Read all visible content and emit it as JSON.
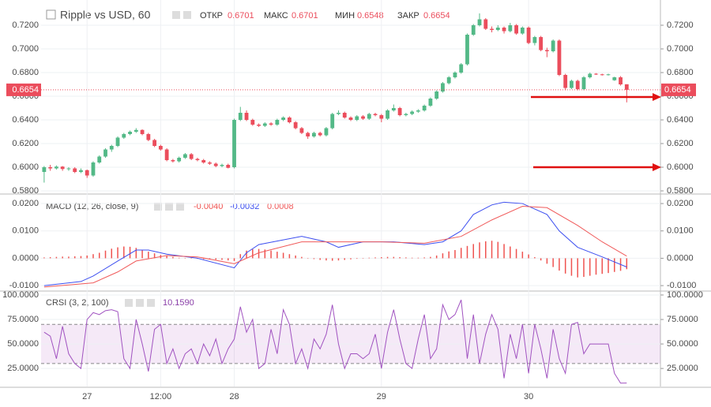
{
  "chart_data": [
    {
      "type": "candlestick",
      "title": "Ripple vs USD, 60",
      "ohlc_labels": [
        "ОТКР",
        "МАКС",
        "МИН",
        "ЗАКР"
      ],
      "up_color": "#53b987",
      "down_color": "#eb4d5c",
      "grid": true,
      "xlim": [
        -0.5,
        100.5
      ],
      "xticks": [
        {
          "value": 7,
          "label": "27"
        },
        {
          "value": 19,
          "label": "12:00"
        },
        {
          "value": 31,
          "label": "28"
        },
        {
          "value": 55,
          "label": "29"
        },
        {
          "value": 79,
          "label": "30"
        }
      ],
      "ylim": [
        0.578,
        0.738
      ],
      "yticks": [
        {
          "value": 0.58,
          "label": "0.5800"
        },
        {
          "value": 0.6,
          "label": "0.6000"
        },
        {
          "value": 0.62,
          "label": "0.6200"
        },
        {
          "value": 0.64,
          "label": "0.6400"
        },
        {
          "value": 0.66,
          "label": "0.6600"
        },
        {
          "value": 0.68,
          "label": "0.6800"
        },
        {
          "value": 0.7,
          "label": "0.7000"
        },
        {
          "value": 0.72,
          "label": "0.7200"
        }
      ],
      "candles": [
        [
          0.596,
          0.601,
          0.587,
          0.6
        ],
        [
          0.6,
          0.602,
          0.597,
          0.599
        ],
        [
          0.599,
          0.6015,
          0.598,
          0.6005
        ],
        [
          0.6005,
          0.601,
          0.597,
          0.5985
        ],
        [
          0.5985,
          0.6,
          0.597,
          0.599
        ],
        [
          0.599,
          0.6,
          0.595,
          0.596
        ],
        [
          0.596,
          0.599,
          0.595,
          0.5975
        ],
        [
          0.5975,
          0.598,
          0.591,
          0.593
        ],
        [
          0.593,
          0.605,
          0.592,
          0.604
        ],
        [
          0.604,
          0.61,
          0.603,
          0.609
        ],
        [
          0.609,
          0.616,
          0.608,
          0.615
        ],
        [
          0.615,
          0.619,
          0.613,
          0.618
        ],
        [
          0.618,
          0.626,
          0.617,
          0.625
        ],
        [
          0.625,
          0.629,
          0.624,
          0.628
        ],
        [
          0.628,
          0.631,
          0.627,
          0.63
        ],
        [
          0.63,
          0.633,
          0.629,
          0.6315
        ],
        [
          0.6315,
          0.632,
          0.627,
          0.628
        ],
        [
          0.628,
          0.629,
          0.622,
          0.623
        ],
        [
          0.623,
          0.624,
          0.617,
          0.618
        ],
        [
          0.618,
          0.619,
          0.614,
          0.615
        ],
        [
          0.615,
          0.616,
          0.605,
          0.606
        ],
        [
          0.606,
          0.607,
          0.604,
          0.605
        ],
        [
          0.605,
          0.609,
          0.604,
          0.608
        ],
        [
          0.608,
          0.612,
          0.607,
          0.611
        ],
        [
          0.611,
          0.612,
          0.606,
          0.607
        ],
        [
          0.607,
          0.608,
          0.605,
          0.606
        ],
        [
          0.606,
          0.607,
          0.603,
          0.604
        ],
        [
          0.604,
          0.605,
          0.602,
          0.603
        ],
        [
          0.603,
          0.604,
          0.6,
          0.601
        ],
        [
          0.601,
          0.603,
          0.6,
          0.602
        ],
        [
          0.602,
          0.603,
          0.599,
          0.5995
        ],
        [
          0.6,
          0.641,
          0.599,
          0.64
        ],
        [
          0.64,
          0.651,
          0.639,
          0.646
        ],
        [
          0.646,
          0.648,
          0.639,
          0.64
        ],
        [
          0.64,
          0.641,
          0.635,
          0.636
        ],
        [
          0.636,
          0.637,
          0.634,
          0.635
        ],
        [
          0.635,
          0.638,
          0.634,
          0.637
        ],
        [
          0.637,
          0.638,
          0.635,
          0.636
        ],
        [
          0.636,
          0.641,
          0.635,
          0.64
        ],
        [
          0.64,
          0.643,
          0.639,
          0.642
        ],
        [
          0.642,
          0.643,
          0.637,
          0.638
        ],
        [
          0.638,
          0.639,
          0.632,
          0.633
        ],
        [
          0.633,
          0.634,
          0.628,
          0.629
        ],
        [
          0.629,
          0.63,
          0.624,
          0.626
        ],
        [
          0.626,
          0.63,
          0.625,
          0.629
        ],
        [
          0.629,
          0.63,
          0.626,
          0.627
        ],
        [
          0.627,
          0.634,
          0.626,
          0.633
        ],
        [
          0.633,
          0.646,
          0.632,
          0.645
        ],
        [
          0.645,
          0.648,
          0.644,
          0.646
        ],
        [
          0.646,
          0.647,
          0.641,
          0.642
        ],
        [
          0.642,
          0.643,
          0.639,
          0.64
        ],
        [
          0.64,
          0.644,
          0.639,
          0.643
        ],
        [
          0.643,
          0.644,
          0.64,
          0.641
        ],
        [
          0.641,
          0.646,
          0.64,
          0.645
        ],
        [
          0.645,
          0.646,
          0.643,
          0.644
        ],
        [
          0.644,
          0.645,
          0.638,
          0.641
        ],
        [
          0.641,
          0.649,
          0.64,
          0.648
        ],
        [
          0.648,
          0.653,
          0.647,
          0.65
        ],
        [
          0.65,
          0.651,
          0.643,
          0.644
        ],
        [
          0.644,
          0.646,
          0.643,
          0.645
        ],
        [
          0.645,
          0.648,
          0.644,
          0.647
        ],
        [
          0.647,
          0.649,
          0.646,
          0.648
        ],
        [
          0.648,
          0.653,
          0.647,
          0.652
        ],
        [
          0.652,
          0.659,
          0.651,
          0.658
        ],
        [
          0.658,
          0.665,
          0.657,
          0.664
        ],
        [
          0.664,
          0.672,
          0.663,
          0.671
        ],
        [
          0.671,
          0.677,
          0.67,
          0.676
        ],
        [
          0.676,
          0.681,
          0.675,
          0.68
        ],
        [
          0.68,
          0.688,
          0.679,
          0.687
        ],
        [
          0.687,
          0.713,
          0.686,
          0.712
        ],
        [
          0.712,
          0.721,
          0.711,
          0.72
        ],
        [
          0.72,
          0.73,
          0.719,
          0.725
        ],
        [
          0.725,
          0.726,
          0.716,
          0.717
        ],
        [
          0.717,
          0.719,
          0.714,
          0.716
        ],
        [
          0.716,
          0.72,
          0.715,
          0.718
        ],
        [
          0.718,
          0.719,
          0.713,
          0.715
        ],
        [
          0.715,
          0.722,
          0.714,
          0.72
        ],
        [
          0.72,
          0.721,
          0.712,
          0.713
        ],
        [
          0.713,
          0.719,
          0.712,
          0.718
        ],
        [
          0.718,
          0.719,
          0.704,
          0.705
        ],
        [
          0.705,
          0.711,
          0.703,
          0.71
        ],
        [
          0.71,
          0.711,
          0.698,
          0.699
        ],
        [
          0.699,
          0.701,
          0.693,
          0.698
        ],
        [
          0.698,
          0.708,
          0.697,
          0.707
        ],
        [
          0.707,
          0.708,
          0.677,
          0.678
        ],
        [
          0.678,
          0.679,
          0.665,
          0.667
        ],
        [
          0.667,
          0.674,
          0.666,
          0.673
        ],
        [
          0.673,
          0.674,
          0.665,
          0.666
        ],
        [
          0.666,
          0.677,
          0.665,
          0.676
        ],
        [
          0.676,
          0.68,
          0.675,
          0.679
        ],
        [
          0.679,
          0.6795,
          0.678,
          0.6785
        ],
        [
          0.6785,
          0.679,
          0.6775,
          0.678
        ],
        [
          0.678,
          0.679,
          0.6775,
          0.6785
        ],
        [
          0.6735,
          0.6765,
          0.673,
          0.676
        ],
        [
          0.676,
          0.677,
          0.669,
          0.67
        ],
        [
          0.6701,
          0.6701,
          0.6548,
          0.6654
        ]
      ]
    },
    {
      "type": "macd",
      "title": "MACD (12, 26, close, 9)",
      "value_labels": [
        "-0.0040",
        "-0.0032",
        "0.0008"
      ],
      "ylim": [
        -0.0117,
        0.0229
      ],
      "yticks": [
        {
          "value": -0.01,
          "label": "-0.0100"
        },
        {
          "value": 0,
          "label": "0.0000"
        },
        {
          "value": 0.01,
          "label": "0.0100"
        },
        {
          "value": 0.02,
          "label": "0.0200"
        }
      ],
      "histogram": {
        "color": "#ef5350",
        "values": [
          0.0003,
          0.0004,
          0.0005,
          0.0006,
          0.0006,
          0.0007,
          0.0008,
          0.001,
          0.0015,
          0.002,
          0.0028,
          0.0035,
          0.004,
          0.0043,
          0.0042,
          0.0038,
          0.003,
          0.0024,
          0.0018,
          0.0012,
          0.0008,
          0.0005,
          0.0002,
          0.0001,
          -0.0001,
          -0.0002,
          -0.0003,
          -0.0004,
          -0.0005,
          -0.0006,
          -0.0008,
          -0.001,
          0.0015,
          0.0028,
          0.0033,
          0.0034,
          0.0032,
          0.0028,
          0.0024,
          0.002,
          0.0015,
          0.001,
          0.0005,
          0.0001,
          -0.0003,
          -0.0006,
          -0.0008,
          -0.0009,
          -0.0008,
          -0.0006,
          -0.0004,
          -0.0002,
          0,
          0.0002,
          0.0003,
          0.0004,
          0.0005,
          0.0005,
          0.0004,
          0.0003,
          0.0002,
          0.0002,
          0.0003,
          0.0005,
          0.001,
          0.0018,
          0.0025,
          0.003,
          0.0038,
          0.0045,
          0.0052,
          0.0058,
          0.0062,
          0.0064,
          0.006,
          0.0052,
          0.0043,
          0.0034,
          0.0024,
          0.0014,
          0.0004,
          -0.0008,
          -0.002,
          -0.0032,
          -0.0045,
          -0.0056,
          -0.0064,
          -0.007,
          -0.0068,
          -0.0064,
          -0.006,
          -0.0057,
          -0.0054,
          -0.005,
          -0.0046,
          -0.004
        ]
      },
      "series": [
        {
          "color": "#3d4ff0",
          "x": [
            0,
            6,
            8,
            12,
            15,
            17,
            20,
            25,
            31,
            33,
            35,
            42,
            46,
            48,
            52,
            57,
            62,
            65,
            68,
            70,
            73,
            75,
            78,
            82,
            84,
            87,
            91,
            95
          ],
          "values": [
            -0.01,
            -0.0085,
            -0.0065,
            -0.001,
            0.003,
            0.003,
            0.0015,
            0,
            -0.0035,
            0.002,
            0.005,
            0.008,
            0.006,
            0.004,
            0.006,
            0.006,
            0.005,
            0.006,
            0.01,
            0.016,
            0.0195,
            0.0205,
            0.02,
            0.016,
            0.01,
            0.004,
            0.0005,
            -0.0032
          ]
        },
        {
          "color": "#f05a5a",
          "x": [
            0,
            8,
            12,
            15,
            20,
            25,
            31,
            35,
            42,
            48,
            55,
            62,
            68,
            73,
            78,
            82,
            87,
            91,
            95
          ],
          "values": [
            -0.0105,
            -0.009,
            -0.005,
            -0.001,
            0.001,
            0.0005,
            -0.002,
            0.002,
            0.006,
            0.006,
            0.006,
            0.0055,
            0.008,
            0.014,
            0.019,
            0.0185,
            0.012,
            0.006,
            0.0008
          ]
        }
      ]
    },
    {
      "type": "crsi",
      "title": "CRSI (3, 2, 100)",
      "value_label": "10.1590",
      "ylim": [
        6.6,
        102.4
      ],
      "yticks": [
        {
          "value": 25,
          "label": "25.0000"
        },
        {
          "value": 50,
          "label": "50.0000"
        },
        {
          "value": 75,
          "label": "75.0000"
        },
        {
          "value": 100,
          "label": "100.0000"
        }
      ],
      "bands": [
        30,
        70
      ],
      "band_color": "#9c27b0",
      "series": [
        {
          "color": "#a052c0",
          "values": [
            62,
            58,
            35,
            68,
            40,
            30,
            25,
            75,
            82,
            80,
            84,
            85,
            83,
            35,
            25,
            75,
            50,
            22,
            65,
            70,
            30,
            45,
            25,
            40,
            45,
            30,
            50,
            38,
            55,
            30,
            45,
            55,
            88,
            62,
            75,
            25,
            30,
            65,
            40,
            85,
            70,
            30,
            45,
            25,
            55,
            45,
            60,
            90,
            50,
            25,
            40,
            40,
            35,
            40,
            60,
            25,
            62,
            85,
            55,
            30,
            25,
            55,
            80,
            35,
            45,
            90,
            75,
            80,
            95,
            35,
            80,
            30,
            60,
            80,
            65,
            15,
            60,
            35,
            70,
            20,
            70,
            45,
            15,
            65,
            35,
            20,
            70,
            72,
            40,
            50,
            50,
            50,
            50,
            20,
            10,
            10.159
          ]
        }
      ]
    }
  ]
}
